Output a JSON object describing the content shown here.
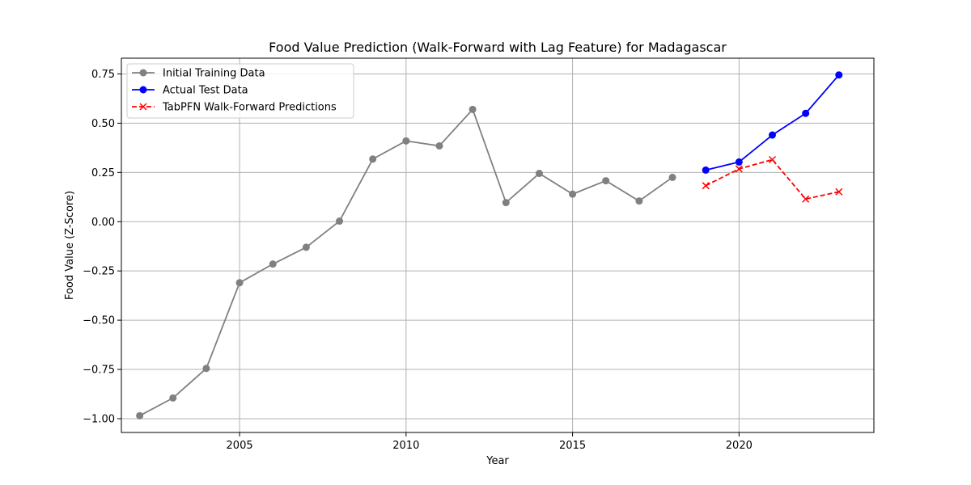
{
  "chart_data": {
    "type": "line",
    "title": "Food Value Prediction (Walk-Forward with Lag Feature) for Madagascar",
    "xlabel": "Year",
    "ylabel": "Food Value (Z-Score)",
    "xlim": [
      2001.45,
      2024.05
    ],
    "ylim": [
      -1.07,
      0.83
    ],
    "xticks": [
      2005,
      2010,
      2015,
      2020
    ],
    "xtick_labels": [
      "2005",
      "2010",
      "2015",
      "2020"
    ],
    "yticks": [
      -1.0,
      -0.75,
      -0.5,
      -0.25,
      0.0,
      0.25,
      0.5,
      0.75
    ],
    "ytick_labels": [
      "−1.00",
      "−0.75",
      "−0.50",
      "−0.25",
      "0.00",
      "0.25",
      "0.50",
      "0.75"
    ],
    "grid": true,
    "legend_position": "top-left",
    "series": [
      {
        "name": "Initial Training Data",
        "color": "#808080",
        "marker": "circle",
        "linestyle": "solid",
        "x": [
          2002,
          2003,
          2004,
          2005,
          2006,
          2007,
          2008,
          2009,
          2010,
          2011,
          2012,
          2013,
          2014,
          2015,
          2016,
          2017,
          2018
        ],
        "y": [
          -0.985,
          -0.895,
          -0.745,
          -0.31,
          -0.215,
          -0.13,
          0.003,
          0.318,
          0.41,
          0.385,
          0.57,
          0.097,
          0.245,
          0.14,
          0.208,
          0.105,
          0.225
        ]
      },
      {
        "name": "Actual Test Data",
        "color": "#0000ff",
        "marker": "circle",
        "linestyle": "solid",
        "x": [
          2019,
          2020,
          2021,
          2022,
          2023
        ],
        "y": [
          0.262,
          0.303,
          0.44,
          0.55,
          0.745
        ]
      },
      {
        "name": "TabPFN Walk-Forward Predictions",
        "color": "#ff0000",
        "marker": "x",
        "linestyle": "dashed",
        "x": [
          2019,
          2020,
          2021,
          2022,
          2023
        ],
        "y": [
          0.183,
          0.268,
          0.315,
          0.115,
          0.152
        ]
      }
    ]
  }
}
